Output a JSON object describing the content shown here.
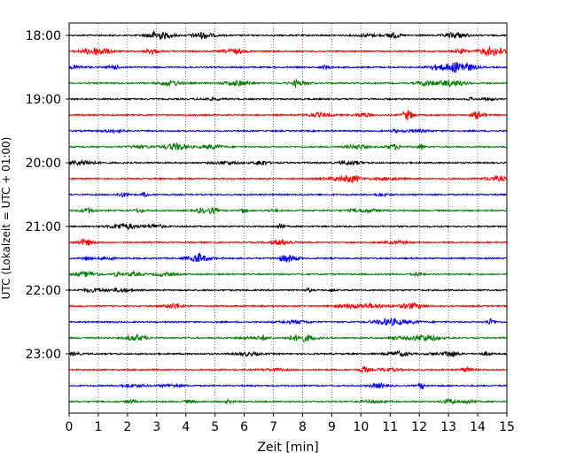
{
  "chart_data": {
    "type": "line",
    "title": "",
    "xlabel": "Zeit  [min]",
    "ylabel": "UTC (Lokalzeit = UTC + 01:00)",
    "xlim": [
      0,
      15
    ],
    "x_ticks": [
      0,
      1,
      2,
      3,
      4,
      5,
      6,
      7,
      8,
      9,
      10,
      11,
      12,
      13,
      14,
      15
    ],
    "x_tick_labels": [
      "0",
      "1",
      "2",
      "3",
      "4",
      "5",
      "6",
      "7",
      "8",
      "9",
      "10",
      "11",
      "12",
      "13",
      "14",
      "15"
    ],
    "y_tick_labels": [
      "18:00",
      "19:00",
      "20:00",
      "21:00",
      "22:00",
      "23:00"
    ],
    "grid": "vertical dotted at each minute",
    "legend": "none",
    "color_cycle": [
      "#000000",
      "#ff0000",
      "#0000ff",
      "#008000"
    ],
    "series": [
      {
        "start": "18:00"
      },
      {
        "start": "18:15"
      },
      {
        "start": "18:30"
      },
      {
        "start": "18:45"
      },
      {
        "start": "19:00"
      },
      {
        "start": "19:15"
      },
      {
        "start": "19:30"
      },
      {
        "start": "19:45"
      },
      {
        "start": "20:00"
      },
      {
        "start": "20:15"
      },
      {
        "start": "20:30"
      },
      {
        "start": "20:45"
      },
      {
        "start": "21:00"
      },
      {
        "start": "21:15"
      },
      {
        "start": "21:30"
      },
      {
        "start": "21:45"
      },
      {
        "start": "22:00"
      },
      {
        "start": "22:15"
      },
      {
        "start": "22:30"
      },
      {
        "start": "22:45"
      },
      {
        "start": "23:00"
      },
      {
        "start": "23:15"
      },
      {
        "start": "23:30"
      },
      {
        "start": "23:45"
      }
    ]
  }
}
